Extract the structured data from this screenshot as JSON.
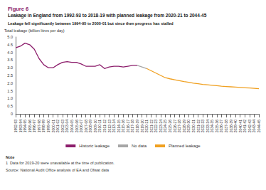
{
  "chart_data": {
    "type": "line",
    "figure_label": "Figure 6",
    "title": "Leakage in England from 1992-93 to 2018-19 with planned leakage from 2020-21 to 2044-45",
    "subtitle": "Leakage fell significantly between 1994-95 to 2000-01 but since then progress has stalled",
    "y_label": "Total leakage (billion litres per day)",
    "categories": [
      "1992-93",
      "1993-94",
      "1994-95",
      "1995-96",
      "1996-97",
      "1997-98",
      "1998-99",
      "1999-00",
      "2000-01",
      "2001-02",
      "2002-03",
      "2003-04",
      "2004-05",
      "2005-06",
      "2006-07",
      "2007-08",
      "2008-09",
      "2009-10",
      "2010-11",
      "2011-12",
      "2012-13",
      "2013-14",
      "2014-15",
      "2015-16",
      "2016-17",
      "2017-18",
      "2018-19",
      "2019-20",
      "2020-21",
      "2021-22",
      "2022-23",
      "2023-24",
      "2024-25",
      "2025-26",
      "2026-27",
      "2027-28",
      "2028-29",
      "2029-30",
      "2030-31",
      "2031-32",
      "2032-33",
      "2033-34",
      "2034-35",
      "2035-36",
      "2036-37",
      "2037-38",
      "2038-39",
      "2039-40",
      "2040-41",
      "2041-42",
      "2042-43",
      "2043-44",
      "2044-45"
    ],
    "series": [
      {
        "name": "Historic leakage",
        "color": "#8c1d6b",
        "line_style": "solid",
        "values": [
          4.3,
          4.4,
          4.6,
          4.5,
          4.2,
          3.6,
          3.2,
          3.0,
          3.0,
          3.2,
          3.35,
          3.4,
          3.35,
          3.35,
          3.25,
          3.1,
          3.1,
          3.1,
          3.2,
          2.95,
          3.05,
          3.1,
          3.1,
          3.05,
          3.1,
          3.15,
          3.15,
          null,
          null,
          null,
          null,
          null,
          null,
          null,
          null,
          null,
          null,
          null,
          null,
          null,
          null,
          null,
          null,
          null,
          null,
          null,
          null,
          null,
          null,
          null,
          null,
          null,
          null
        ]
      },
      {
        "name": "No data",
        "color": "#a6a6a6",
        "line_style": "solid",
        "values": [
          null,
          null,
          null,
          null,
          null,
          null,
          null,
          null,
          null,
          null,
          null,
          null,
          null,
          null,
          null,
          null,
          null,
          null,
          null,
          null,
          null,
          null,
          null,
          null,
          null,
          null,
          3.15,
          null,
          2.95,
          null,
          null,
          null,
          null,
          null,
          null,
          null,
          null,
          null,
          null,
          null,
          null,
          null,
          null,
          null,
          null,
          null,
          null,
          null,
          null,
          null,
          null,
          null,
          null
        ]
      },
      {
        "name": "Planned leakage",
        "color": "#f0a020",
        "line_style": "solid",
        "values": [
          null,
          null,
          null,
          null,
          null,
          null,
          null,
          null,
          null,
          null,
          null,
          null,
          null,
          null,
          null,
          null,
          null,
          null,
          null,
          null,
          null,
          null,
          null,
          null,
          null,
          null,
          null,
          null,
          2.95,
          2.8,
          2.65,
          2.5,
          2.35,
          2.28,
          2.22,
          2.16,
          2.1,
          2.05,
          2.0,
          1.96,
          1.92,
          1.89,
          1.86,
          1.83,
          1.8,
          1.78,
          1.76,
          1.74,
          1.72,
          1.7,
          1.68,
          1.66,
          1.64
        ]
      }
    ],
    "ylim": [
      0,
      5
    ],
    "yticks": [
      0,
      0.5,
      {
        "value": 1,
        "label": "1.0"
      },
      1.5,
      {
        "value": 2,
        "label": "2.0"
      },
      2.5,
      {
        "value": 3,
        "label": "3.0"
      },
      3.5,
      {
        "value": 4,
        "label": "4.0"
      },
      4.5,
      {
        "value": 5,
        "label": "5.0"
      }
    ],
    "grid": false,
    "legend": "bottom",
    "notes": [
      "Note",
      "1  Data for 2019-20 were unavailable at the time of publication."
    ],
    "source": "Source: National Audit Office analysis of EA and Ofwat data"
  }
}
